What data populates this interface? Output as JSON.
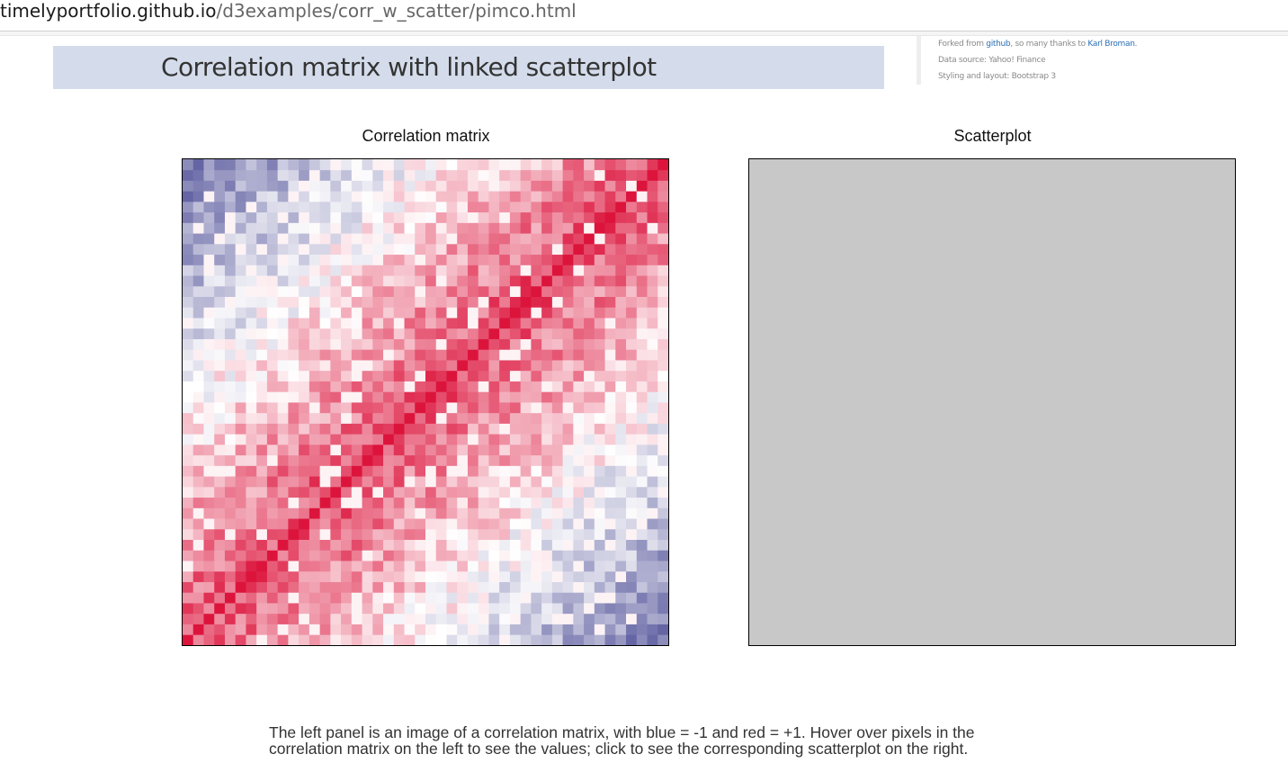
{
  "browser": {
    "url_host": "timelyportfolio.github.io",
    "url_path": "/d3examples/corr_w_scatter/pimco.html"
  },
  "header": {
    "title": "Correlation matrix with linked scatterplot"
  },
  "credits": {
    "line1_prefix": "Forked from ",
    "line1_link1": "github",
    "line1_middle": ", so many thanks to ",
    "line1_link2": "Karl Broman",
    "line1_suffix": ".",
    "line2": "Data source: Yahoo! Finance",
    "line3": "Styling and layout: Bootstrap 3"
  },
  "panels": {
    "left_title": "Correlation matrix",
    "right_title": "Scatterplot"
  },
  "caption": {
    "line1": "The left panel is an image of a correlation matrix, with blue = -1 and red = +1. Hover over pixels in the",
    "line2": "correlation matrix on the left to see the values; click to see the corresponding scatterplot on the right."
  },
  "colors": {
    "negative": "#55559b",
    "neutral": "#ffffff",
    "positive": "#dc143c",
    "scatter_bg": "#c8c8c8",
    "title_band": "#d4dceb"
  },
  "heatmap": {
    "variables": 46,
    "color_scale": {
      "min": -1,
      "mid": 0,
      "max": 1
    }
  }
}
